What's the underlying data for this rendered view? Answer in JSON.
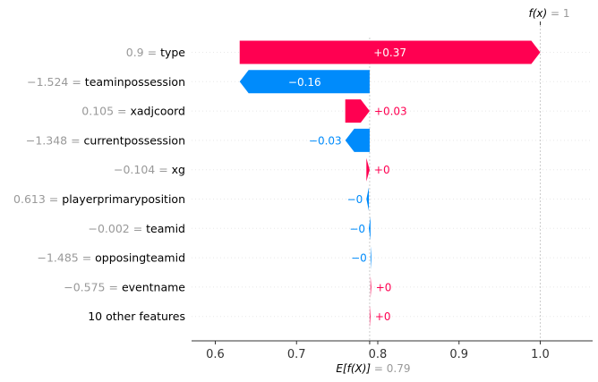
{
  "chart_data": {
    "type": "bar",
    "subtype": "waterfall",
    "base_value": 0.79,
    "output_value": 1,
    "base_label": {
      "prefix": "E[",
      "func": "f(X)",
      "suffix": "]",
      "eq": " = ",
      "value": "0.79"
    },
    "output_label": {
      "func": "f(x)",
      "eq": " = ",
      "value": "1"
    },
    "xlim": [
      0.575,
      1.06
    ],
    "xticks": [
      0.6,
      0.7,
      0.8,
      0.9,
      1.0
    ],
    "xtick_labels": [
      "0.6",
      "0.7",
      "0.8",
      "0.9",
      "1.0"
    ],
    "grid": false,
    "colors": {
      "positive": "#ff0051",
      "negative": "#008bfb",
      "axis": "#333333",
      "value": "#999999"
    },
    "features": [
      {
        "value": "0.9",
        "name": "type",
        "contribution": 0.37,
        "label": "+0.37"
      },
      {
        "value": "−1.524",
        "name": "teaminpossession",
        "contribution": -0.16,
        "label": "−0.16"
      },
      {
        "value": "0.105",
        "name": "xadjcoord",
        "contribution": 0.03,
        "label": "+0.03"
      },
      {
        "value": "−1.348",
        "name": "currentpossession",
        "contribution": -0.03,
        "label": "−0.03"
      },
      {
        "value": "−0.104",
        "name": "xg",
        "contribution": 0.004,
        "label": "+0"
      },
      {
        "value": "0.613",
        "name": "playerprimaryposition",
        "contribution": -0.003,
        "label": "−0"
      },
      {
        "value": "−0.002",
        "name": "teamid",
        "contribution": -0.002,
        "label": "−0"
      },
      {
        "value": "−1.485",
        "name": "opposingteamid",
        "contribution": -0.001,
        "label": "−0"
      },
      {
        "value": "−0.575",
        "name": "eventname",
        "contribution": 0.001,
        "label": "+0"
      },
      {
        "value": "",
        "name": "10 other features",
        "contribution": 0.001,
        "label": "+0"
      }
    ]
  }
}
